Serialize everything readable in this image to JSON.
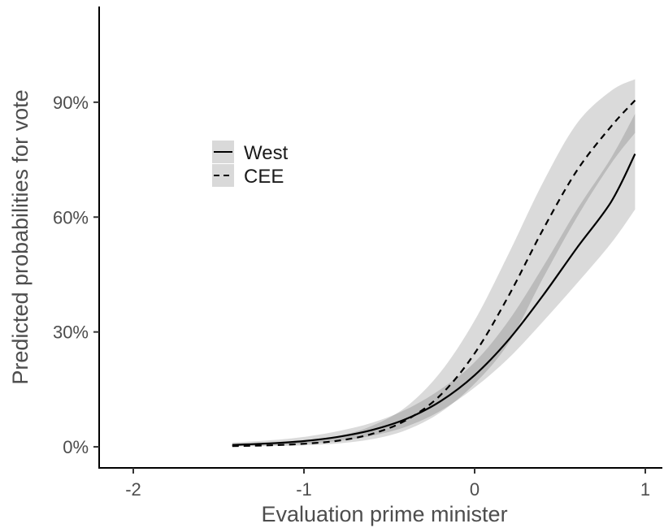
{
  "chart_data": {
    "type": "line",
    "xlabel": "Evaluation prime minister",
    "ylabel": "Predicted probabilities for vote",
    "xlim": [
      -2.2,
      1.1
    ],
    "ylim": [
      -0.055,
      1.15
    ],
    "x_ticks": [
      {
        "value": -2,
        "label": "-2"
      },
      {
        "value": -1,
        "label": "-1"
      },
      {
        "value": 0,
        "label": "0"
      },
      {
        "value": 1,
        "label": "1"
      }
    ],
    "y_ticks": [
      {
        "value": 0.0,
        "label": "0%"
      },
      {
        "value": 0.3,
        "label": "30%"
      },
      {
        "value": 0.6,
        "label": "60%"
      },
      {
        "value": 0.9,
        "label": "90%"
      }
    ],
    "grid": false,
    "legend": {
      "placement": "upper-left"
    },
    "series": [
      {
        "name": "West",
        "line_style": "solid",
        "x": [
          -1.42,
          -1.2,
          -1.0,
          -0.8,
          -0.6,
          -0.4,
          -0.2,
          0.0,
          0.2,
          0.4,
          0.6,
          0.8,
          0.94
        ],
        "y": [
          0.005,
          0.009,
          0.015,
          0.026,
          0.044,
          0.073,
          0.119,
          0.187,
          0.28,
          0.395,
          0.52,
          0.64,
          0.765
        ],
        "lower": [
          0.002,
          0.004,
          0.008,
          0.015,
          0.029,
          0.053,
          0.094,
          0.155,
          0.232,
          0.327,
          0.427,
          0.532,
          0.62
        ],
        "upper": [
          0.011,
          0.017,
          0.026,
          0.041,
          0.063,
          0.098,
          0.15,
          0.221,
          0.33,
          0.47,
          0.62,
          0.755,
          0.87
        ]
      },
      {
        "name": "CEE",
        "line_style": "dashed",
        "x": [
          -1.42,
          -1.2,
          -1.0,
          -0.8,
          -0.6,
          -0.4,
          -0.2,
          0.0,
          0.2,
          0.4,
          0.6,
          0.8,
          0.94
        ],
        "y": [
          0.002,
          0.004,
          0.008,
          0.016,
          0.034,
          0.07,
          0.135,
          0.244,
          0.395,
          0.567,
          0.722,
          0.837,
          0.905
        ],
        "lower": [
          0.001,
          0.002,
          0.004,
          0.009,
          0.02,
          0.044,
          0.09,
          0.165,
          0.272,
          0.44,
          0.6,
          0.74,
          0.82
        ],
        "upper": [
          0.006,
          0.01,
          0.016,
          0.028,
          0.055,
          0.105,
          0.195,
          0.33,
          0.505,
          0.69,
          0.845,
          0.93,
          0.96
        ]
      }
    ],
    "colors": {
      "band": "#333333",
      "line": "#000000",
      "axis": "#000000",
      "text": "#4d4d4d"
    }
  }
}
